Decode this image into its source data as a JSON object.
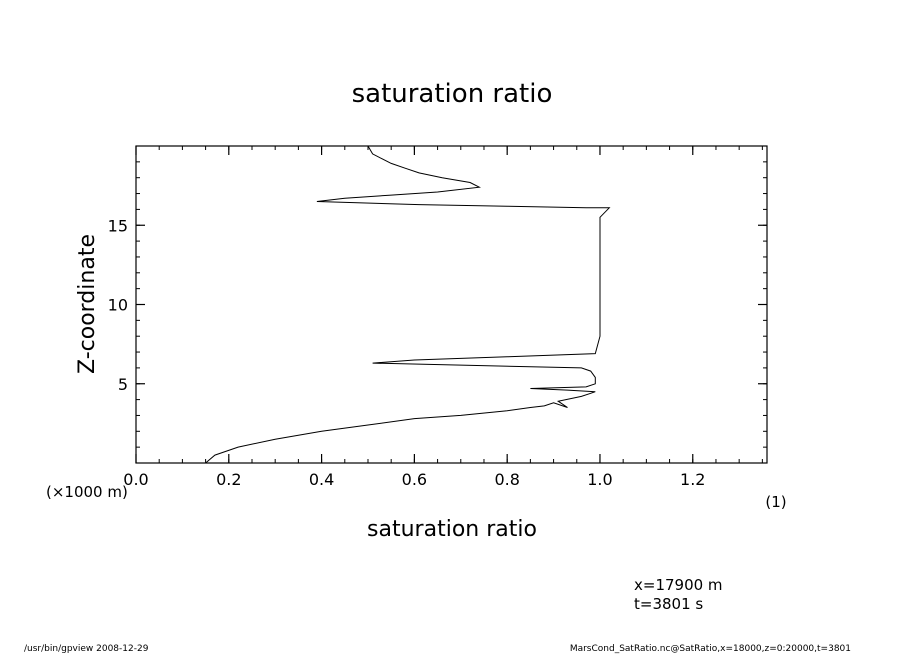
{
  "chart_data": {
    "type": "line",
    "title": "saturation ratio",
    "xlabel": "saturation ratio",
    "xunits": "(1)",
    "ylabel": "Z-coordinate",
    "yunits": "(×1000 m)",
    "xlim": [
      0.0,
      1.36
    ],
    "ylim": [
      0.0,
      20.0
    ],
    "x_major_ticks": [
      0.0,
      0.2,
      0.4,
      0.6,
      0.8,
      1.0,
      1.2
    ],
    "x_tick_labels": [
      "0.0",
      "0.2",
      "0.4",
      "0.6",
      "0.8",
      "1.0",
      "1.2"
    ],
    "x_minor_step": 0.05,
    "y_major_ticks": [
      5,
      10,
      15
    ],
    "y_tick_labels": [
      "5",
      "10",
      "15"
    ],
    "y_minor_step": 1,
    "grid": false,
    "series": [
      {
        "x": [
          0.15,
          0.17,
          0.22,
          0.3,
          0.4,
          0.5,
          0.6,
          0.7,
          0.8,
          0.85,
          0.88,
          0.9,
          0.93,
          0.91,
          0.96,
          0.98,
          0.99,
          0.93,
          0.85,
          0.97,
          0.99,
          0.99,
          0.98,
          0.96,
          0.51,
          0.6,
          0.8,
          0.99,
          1.0,
          1.0,
          1.0,
          1.0,
          1.0,
          1.02,
          0.97,
          0.8,
          0.61,
          0.39,
          0.45,
          0.55,
          0.65,
          0.74,
          0.72,
          0.66,
          0.61,
          0.58,
          0.55,
          0.53,
          0.51,
          0.5
        ],
        "y": [
          0.0,
          0.5,
          1.0,
          1.5,
          2.0,
          2.4,
          2.8,
          3.0,
          3.3,
          3.5,
          3.6,
          3.8,
          3.5,
          3.9,
          4.2,
          4.4,
          4.5,
          4.6,
          4.7,
          4.8,
          5.0,
          5.4,
          5.8,
          6.0,
          6.3,
          6.5,
          6.7,
          6.9,
          8.0,
          10.0,
          12.0,
          14.0,
          15.5,
          16.1,
          16.1,
          16.2,
          16.3,
          16.5,
          16.7,
          16.9,
          17.1,
          17.4,
          17.7,
          18.0,
          18.3,
          18.6,
          18.9,
          19.2,
          19.5,
          20.0
        ]
      }
    ],
    "annotations": {
      "position_line1": "x=17900 m",
      "position_line2": "t=3801 s"
    }
  },
  "footer": {
    "left": "/usr/bin/gpview   2008-12-29",
    "right": "MarsCond_SatRatio.nc@SatRatio,x=18000,z=0:20000,t=3801"
  }
}
